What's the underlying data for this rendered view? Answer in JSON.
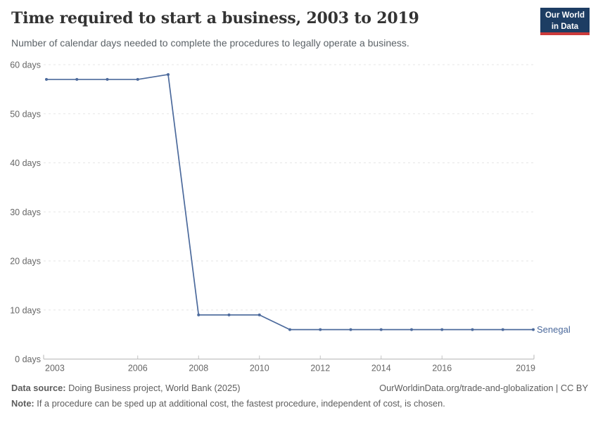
{
  "header": {
    "title": "Time required to start a business, 2003 to 2019",
    "subtitle": "Number of calendar days needed to complete the procedures to legally operate a business.",
    "logo": {
      "line1": "Our World",
      "line2": "in Data",
      "bg_color": "#1d3d63",
      "bar_color": "#cc3b3b"
    }
  },
  "chart_data": {
    "type": "line",
    "title": "Time required to start a business, 2003 to 2019",
    "xlabel": "",
    "ylabel": "",
    "xlim": [
      2003,
      2019
    ],
    "ylim": [
      0,
      60
    ],
    "x_ticks": [
      2003,
      2006,
      2008,
      2010,
      2012,
      2014,
      2016,
      2019
    ],
    "y_ticks": [
      0,
      10,
      20,
      30,
      40,
      50,
      60
    ],
    "y_tick_suffix": " days",
    "grid": "horizontal-dashed",
    "legend_position": "end-of-line",
    "colors": {
      "gridline": "#e6e6e6",
      "axis_line": "#b6b6b6",
      "tick": "#c2c2c2",
      "axis_text": "#666666"
    },
    "series": [
      {
        "name": "Senegal",
        "color": "#4c6a9c",
        "x": [
          2003,
          2004,
          2005,
          2006,
          2007,
          2008,
          2009,
          2010,
          2011,
          2012,
          2013,
          2014,
          2015,
          2016,
          2017,
          2018,
          2019
        ],
        "values": [
          57,
          57,
          57,
          57,
          58,
          9,
          9,
          9,
          6,
          6,
          6,
          6,
          6,
          6,
          6,
          6,
          6
        ]
      }
    ]
  },
  "footer": {
    "datasource_label": "Data source:",
    "datasource_value": " Doing Business project, World Bank (2025)",
    "link": "OurWorldinData.org/trade-and-globalization | CC BY",
    "note_label": "Note:",
    "note_value": " If a procedure can be sped up at additional cost, the fastest procedure, independent of cost, is chosen."
  }
}
